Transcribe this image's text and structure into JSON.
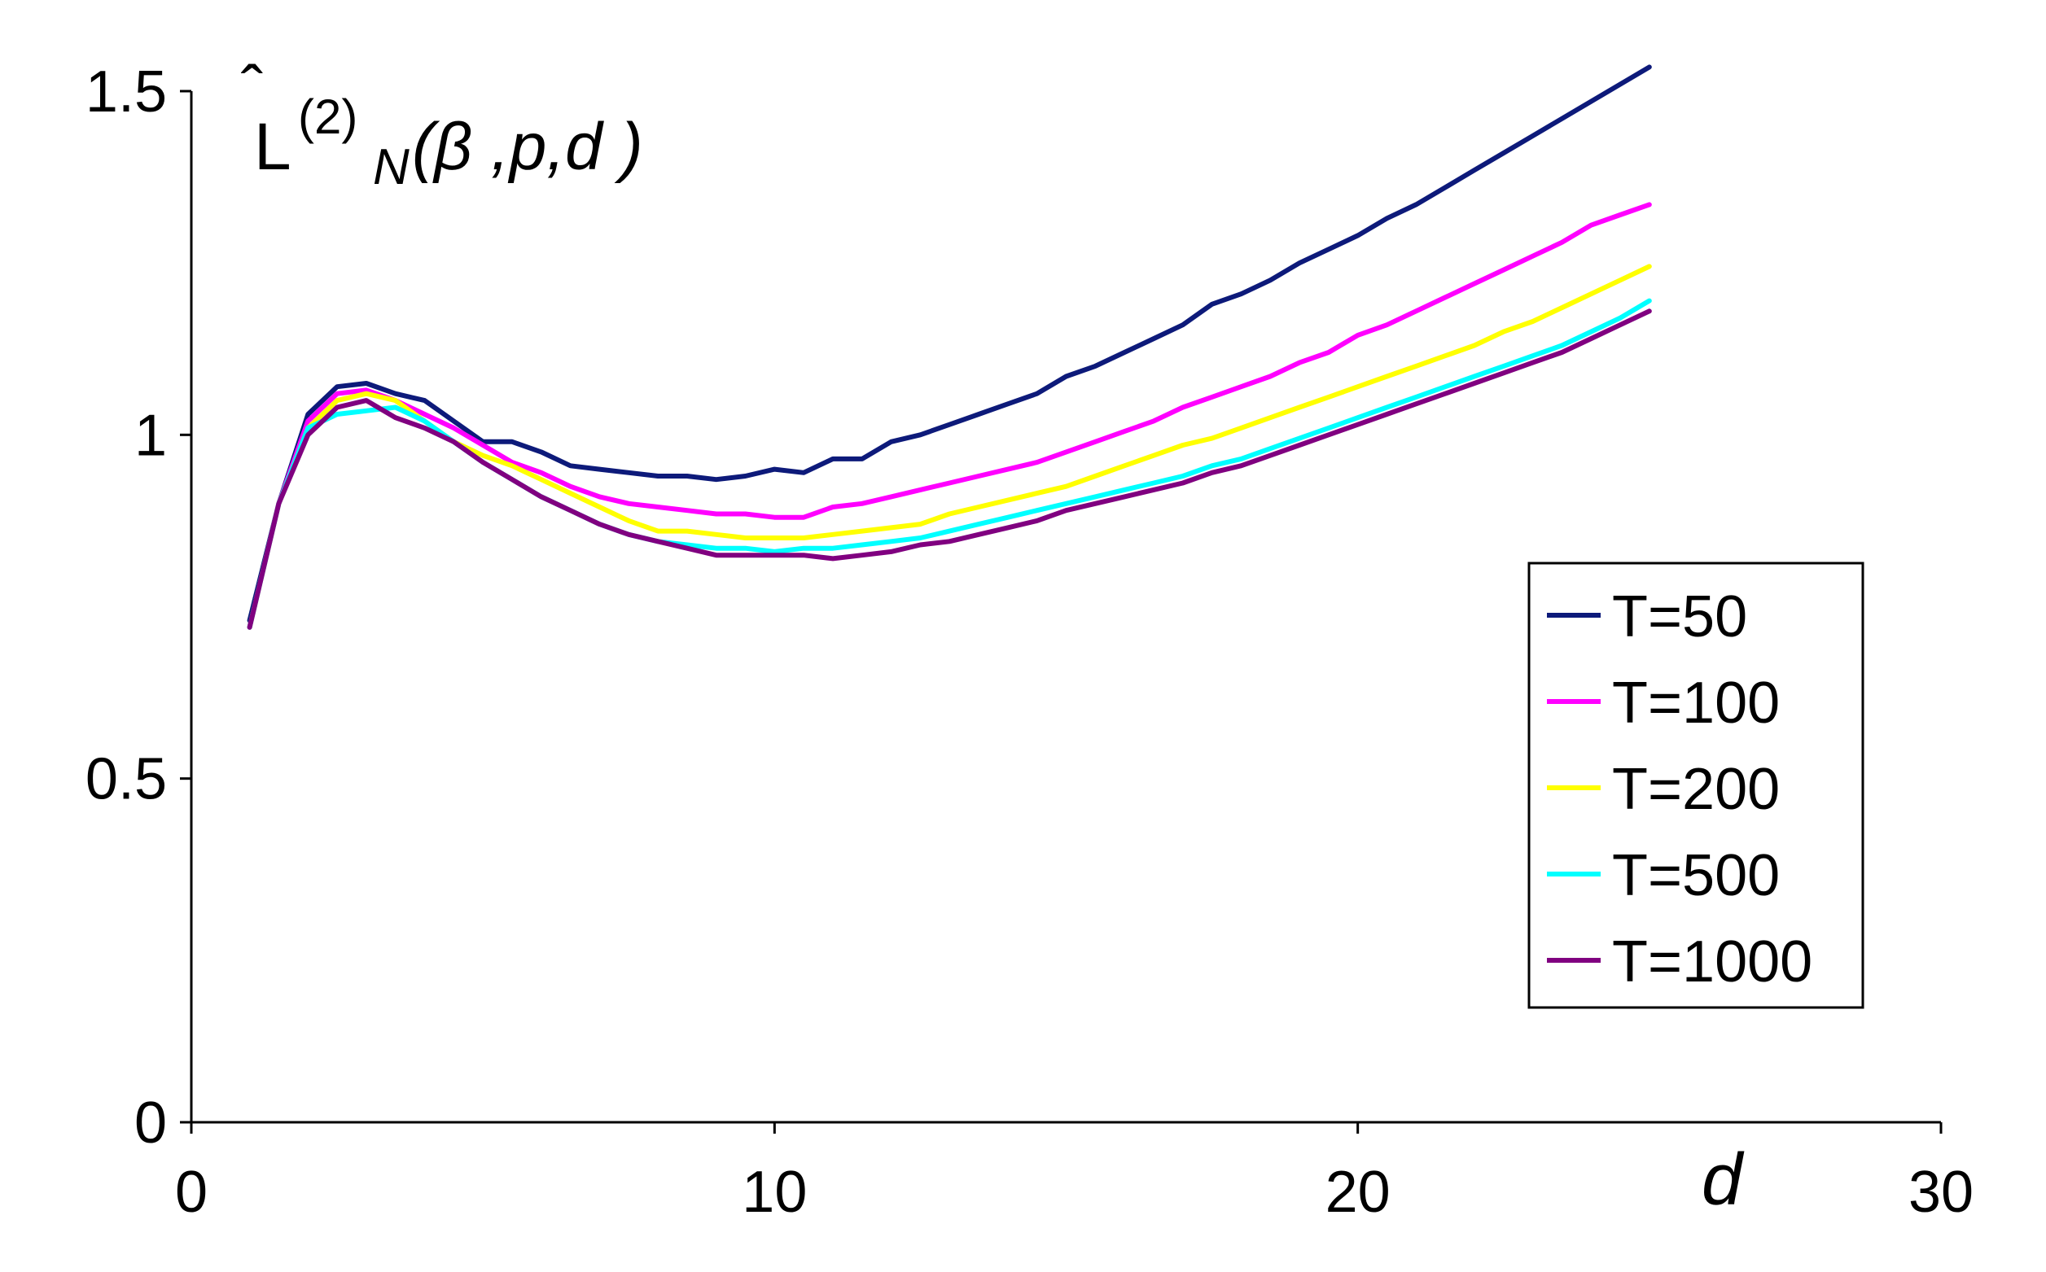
{
  "chart_data": {
    "type": "line",
    "title_parts": {
      "main": "L",
      "hat": "ˆ",
      "superscript": "(2)",
      "subscript": "N",
      "args": "(β ,p,d )"
    },
    "xlabel": "d",
    "ylabel": "",
    "xlim": [
      0,
      30
    ],
    "ylim": [
      0,
      1.5
    ],
    "x_ticks": [
      0,
      10,
      20,
      30
    ],
    "y_ticks": [
      0,
      0.5,
      1,
      1.5
    ],
    "x_tick_labels": [
      "0",
      "10",
      "20",
      "30"
    ],
    "y_tick_labels": [
      "0",
      "0.5",
      "1",
      "1.5"
    ],
    "grid": false,
    "legend_position": "right",
    "x": [
      1,
      1.5,
      2,
      2.5,
      3,
      3.5,
      4,
      4.5,
      5,
      5.5,
      6,
      6.5,
      7,
      7.5,
      8,
      8.5,
      9,
      9.5,
      10,
      10.5,
      11,
      11.5,
      12,
      12.5,
      13,
      13.5,
      14,
      14.5,
      15,
      15.5,
      16,
      16.5,
      17,
      17.5,
      18,
      18.5,
      19,
      19.5,
      20,
      20.5,
      21,
      21.5,
      22,
      22.5,
      23,
      23.5,
      24,
      24.5,
      25
    ],
    "series": [
      {
        "name": "T=50",
        "color": "#0d1a7a",
        "values": [
          0.73,
          0.9,
          1.03,
          1.07,
          1.075,
          1.06,
          1.05,
          1.02,
          0.99,
          0.99,
          0.975,
          0.955,
          0.95,
          0.945,
          0.94,
          0.94,
          0.935,
          0.94,
          0.95,
          0.945,
          0.965,
          0.965,
          0.99,
          1.0,
          1.015,
          1.03,
          1.045,
          1.06,
          1.085,
          1.1,
          1.12,
          1.14,
          1.16,
          1.19,
          1.205,
          1.225,
          1.25,
          1.27,
          1.29,
          1.315,
          1.335,
          1.36,
          1.385,
          1.41,
          1.435,
          1.46,
          1.485,
          1.51,
          1.535
        ]
      },
      {
        "name": "T=100",
        "color": "#ff00ff",
        "values": [
          0.72,
          0.9,
          1.02,
          1.06,
          1.065,
          1.05,
          1.03,
          1.01,
          0.985,
          0.96,
          0.945,
          0.925,
          0.91,
          0.9,
          0.895,
          0.89,
          0.885,
          0.885,
          0.88,
          0.88,
          0.895,
          0.9,
          0.91,
          0.92,
          0.93,
          0.94,
          0.95,
          0.96,
          0.975,
          0.99,
          1.005,
          1.02,
          1.04,
          1.055,
          1.07,
          1.085,
          1.105,
          1.12,
          1.145,
          1.16,
          1.18,
          1.2,
          1.22,
          1.24,
          1.26,
          1.28,
          1.305,
          1.32,
          1.335
        ]
      },
      {
        "name": "T=200",
        "color": "#ffff00",
        "values": [
          0.72,
          0.9,
          1.01,
          1.05,
          1.06,
          1.05,
          1.02,
          0.99,
          0.97,
          0.955,
          0.935,
          0.915,
          0.895,
          0.875,
          0.86,
          0.86,
          0.855,
          0.85,
          0.85,
          0.85,
          0.855,
          0.86,
          0.865,
          0.87,
          0.885,
          0.895,
          0.905,
          0.915,
          0.925,
          0.94,
          0.955,
          0.97,
          0.985,
          0.995,
          1.01,
          1.025,
          1.04,
          1.055,
          1.07,
          1.085,
          1.1,
          1.115,
          1.13,
          1.15,
          1.165,
          1.185,
          1.205,
          1.225,
          1.245
        ]
      },
      {
        "name": "T=500",
        "color": "#00ffff",
        "values": [
          0.72,
          0.9,
          1.01,
          1.03,
          1.035,
          1.04,
          1.02,
          0.99,
          0.96,
          0.935,
          0.91,
          0.89,
          0.87,
          0.855,
          0.845,
          0.84,
          0.835,
          0.835,
          0.83,
          0.835,
          0.835,
          0.84,
          0.845,
          0.85,
          0.86,
          0.87,
          0.88,
          0.89,
          0.9,
          0.91,
          0.92,
          0.93,
          0.94,
          0.955,
          0.965,
          0.98,
          0.995,
          1.01,
          1.025,
          1.04,
          1.055,
          1.07,
          1.085,
          1.1,
          1.115,
          1.13,
          1.15,
          1.17,
          1.195
        ]
      },
      {
        "name": "T=1000",
        "color": "#800080",
        "values": [
          0.72,
          0.9,
          1.0,
          1.04,
          1.05,
          1.025,
          1.01,
          0.99,
          0.96,
          0.935,
          0.91,
          0.89,
          0.87,
          0.855,
          0.845,
          0.835,
          0.825,
          0.825,
          0.825,
          0.825,
          0.82,
          0.825,
          0.83,
          0.84,
          0.845,
          0.855,
          0.865,
          0.875,
          0.89,
          0.9,
          0.91,
          0.92,
          0.93,
          0.945,
          0.955,
          0.97,
          0.985,
          1.0,
          1.015,
          1.03,
          1.045,
          1.06,
          1.075,
          1.09,
          1.105,
          1.12,
          1.14,
          1.16,
          1.18
        ]
      }
    ]
  }
}
